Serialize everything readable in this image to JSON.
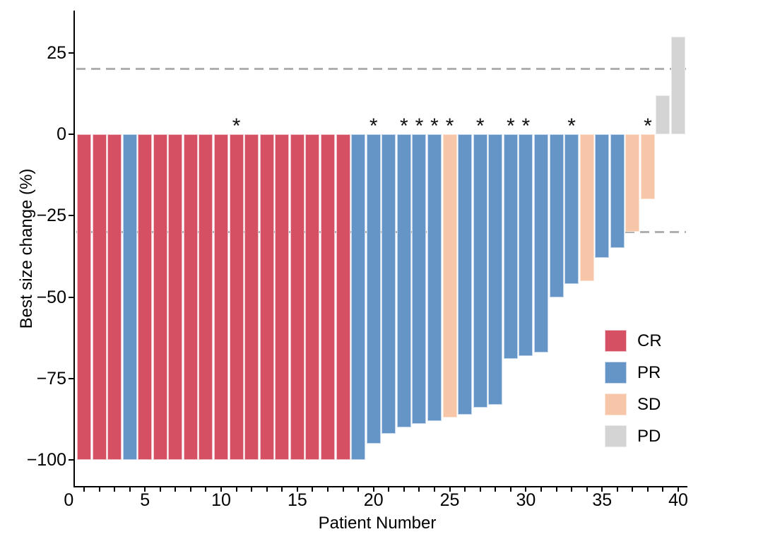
{
  "chart_data": {
    "type": "bar",
    "subtype": "waterfall",
    "title": "",
    "xlabel": "Patient Number",
    "ylabel": "Best size change (%)",
    "x_domain": [
      0.4,
      40.6
    ],
    "ylim": [
      -108,
      38
    ],
    "x_tick_labels": [
      0,
      5,
      10,
      15,
      20,
      25,
      30,
      35,
      40
    ],
    "x_minor_tick_every": 1,
    "y_ticks": [
      25,
      0,
      -25,
      -50,
      -75,
      -100
    ],
    "grid": false,
    "reference_lines": [
      {
        "y": 20,
        "style": "dashed",
        "color": "#b0b0b0"
      },
      {
        "y": -30,
        "style": "dashed",
        "color": "#b0b0b0"
      }
    ],
    "annotation_symbol": "*",
    "asterisk_patients": [
      11,
      20,
      22,
      23,
      24,
      25,
      27,
      29,
      30,
      33,
      38
    ],
    "legend": {
      "position": "inside-right",
      "entries": [
        {
          "label": "CR",
          "color": "#d65064",
          "border": "#eec2ca"
        },
        {
          "label": "PR",
          "color": "#6594c7",
          "border": "#c3d6eb"
        },
        {
          "label": "SD",
          "color": "#f7c6a9",
          "border": "#fce4d4"
        },
        {
          "label": "PD",
          "color": "#d4d4d4",
          "border": "#e9e9e9"
        }
      ]
    },
    "patients": [
      {
        "patient": 1,
        "value": -100,
        "response": "CR",
        "asterisk": false
      },
      {
        "patient": 2,
        "value": -100,
        "response": "CR",
        "asterisk": false
      },
      {
        "patient": 3,
        "value": -100,
        "response": "CR",
        "asterisk": false
      },
      {
        "patient": 4,
        "value": -100,
        "response": "PR",
        "asterisk": false
      },
      {
        "patient": 5,
        "value": -100,
        "response": "CR",
        "asterisk": false
      },
      {
        "patient": 6,
        "value": -100,
        "response": "CR",
        "asterisk": false
      },
      {
        "patient": 7,
        "value": -100,
        "response": "CR",
        "asterisk": false
      },
      {
        "patient": 8,
        "value": -100,
        "response": "CR",
        "asterisk": false
      },
      {
        "patient": 9,
        "value": -100,
        "response": "CR",
        "asterisk": false
      },
      {
        "patient": 10,
        "value": -100,
        "response": "CR",
        "asterisk": false
      },
      {
        "patient": 11,
        "value": -100,
        "response": "CR",
        "asterisk": true
      },
      {
        "patient": 12,
        "value": -100,
        "response": "CR",
        "asterisk": false
      },
      {
        "patient": 13,
        "value": -100,
        "response": "CR",
        "asterisk": false
      },
      {
        "patient": 14,
        "value": -100,
        "response": "CR",
        "asterisk": false
      },
      {
        "patient": 15,
        "value": -100,
        "response": "CR",
        "asterisk": false
      },
      {
        "patient": 16,
        "value": -100,
        "response": "CR",
        "asterisk": false
      },
      {
        "patient": 17,
        "value": -100,
        "response": "CR",
        "asterisk": false
      },
      {
        "patient": 18,
        "value": -100,
        "response": "CR",
        "asterisk": false
      },
      {
        "patient": 19,
        "value": -100,
        "response": "PR",
        "asterisk": false
      },
      {
        "patient": 20,
        "value": -95,
        "response": "PR",
        "asterisk": true
      },
      {
        "patient": 21,
        "value": -92,
        "response": "PR",
        "asterisk": false
      },
      {
        "patient": 22,
        "value": -90,
        "response": "PR",
        "asterisk": true
      },
      {
        "patient": 23,
        "value": -89,
        "response": "PR",
        "asterisk": true
      },
      {
        "patient": 24,
        "value": -88,
        "response": "PR",
        "asterisk": true
      },
      {
        "patient": 25,
        "value": -87,
        "response": "SD",
        "asterisk": true
      },
      {
        "patient": 26,
        "value": -86,
        "response": "PR",
        "asterisk": false
      },
      {
        "patient": 27,
        "value": -84,
        "response": "PR",
        "asterisk": true
      },
      {
        "patient": 28,
        "value": -83,
        "response": "PR",
        "asterisk": false
      },
      {
        "patient": 29,
        "value": -69,
        "response": "PR",
        "asterisk": true
      },
      {
        "patient": 30,
        "value": -68,
        "response": "PR",
        "asterisk": true
      },
      {
        "patient": 31,
        "value": -67,
        "response": "PR",
        "asterisk": false
      },
      {
        "patient": 32,
        "value": -50,
        "response": "PR",
        "asterisk": false
      },
      {
        "patient": 33,
        "value": -46,
        "response": "PR",
        "asterisk": true
      },
      {
        "patient": 34,
        "value": -45,
        "response": "SD",
        "asterisk": false
      },
      {
        "patient": 35,
        "value": -38,
        "response": "PR",
        "asterisk": false
      },
      {
        "patient": 36,
        "value": -35,
        "response": "PR",
        "asterisk": false
      },
      {
        "patient": 37,
        "value": -30,
        "response": "SD",
        "asterisk": false
      },
      {
        "patient": 38,
        "value": -20,
        "response": "SD",
        "asterisk": true
      },
      {
        "patient": 39,
        "value": 12,
        "response": "PD",
        "asterisk": false
      },
      {
        "patient": 40,
        "value": 30,
        "response": "PD",
        "asterisk": false
      }
    ]
  }
}
